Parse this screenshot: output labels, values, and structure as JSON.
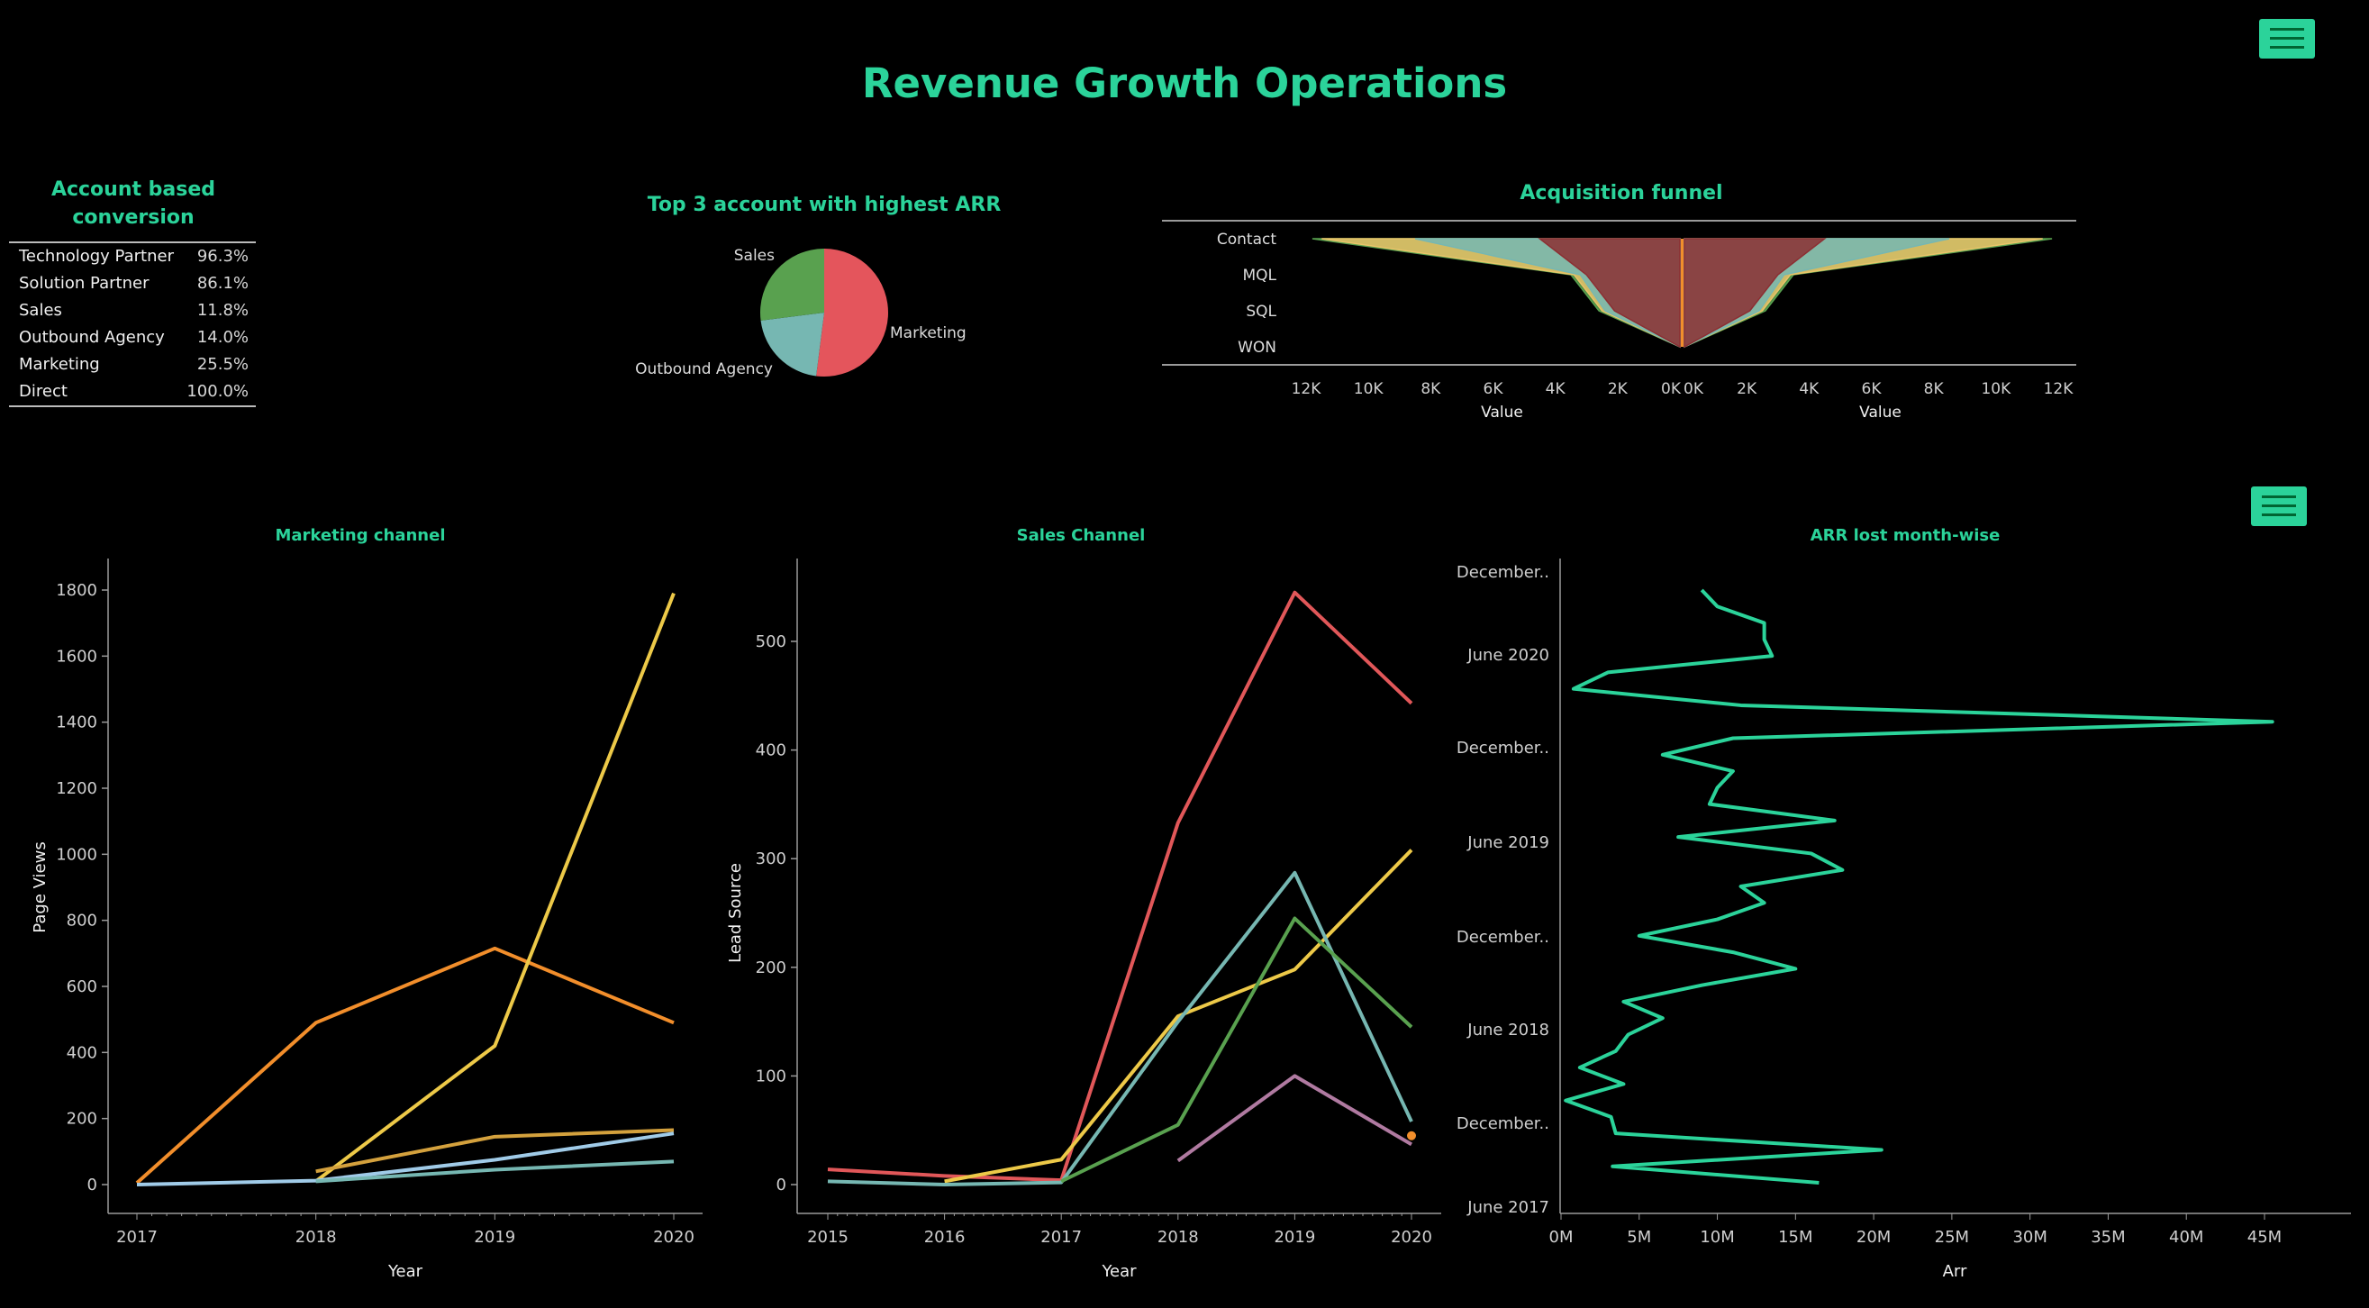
{
  "dashboard": {
    "title": "Revenue Growth Operations",
    "accent_color": "#2bd39a",
    "background_color": "#000000",
    "menu_icon": "hamburger-menu-icon"
  },
  "account_table": {
    "title_line1": "Account based",
    "title_line2": "conversion",
    "rows": [
      {
        "label": "Technology Partner",
        "value": "96.3%"
      },
      {
        "label": "Solution Partner",
        "value": "86.1%"
      },
      {
        "label": "Sales",
        "value": "11.8%"
      },
      {
        "label": "Outbound Agency",
        "value": "14.0%"
      },
      {
        "label": "Marketing",
        "value": "25.5%"
      },
      {
        "label": "Direct",
        "value": "100.0%"
      }
    ]
  },
  "chart_data": [
    {
      "id": "pie",
      "type": "pie",
      "title": "Top 3 account with highest ARR",
      "slices": [
        {
          "label": "Marketing",
          "value": 52,
          "color": "#e4555c"
        },
        {
          "label": "Outbound Agency",
          "value": 21,
          "color": "#76b7b2"
        },
        {
          "label": "Sales",
          "value": 27,
          "color": "#59a14f"
        }
      ]
    },
    {
      "id": "funnel",
      "type": "area",
      "title": "Acquisition funnel",
      "stages": [
        "Contact",
        "MQL",
        "SQL",
        "WON"
      ],
      "xlabel": "Value",
      "xlim": [
        0,
        12000
      ],
      "left_ticks": [
        "12K",
        "10K",
        "8K",
        "6K",
        "4K",
        "2K",
        "0K"
      ],
      "right_ticks": [
        "0K",
        "2K",
        "4K",
        "6K",
        "8K",
        "10K",
        "12K"
      ],
      "series": [
        {
          "color": "#59a14f",
          "values": [
            11800,
            3500,
            2600,
            0
          ]
        },
        {
          "color": "#e9c46a",
          "values": [
            11500,
            3400,
            2500,
            0
          ]
        },
        {
          "color": "#76b7b2",
          "values": [
            8500,
            3200,
            2400,
            0
          ]
        },
        {
          "color": "#8c2f33",
          "values": [
            4500,
            3000,
            2100,
            0
          ]
        }
      ]
    },
    {
      "id": "marketing",
      "type": "line",
      "title": "Marketing channel",
      "xlabel": "Year",
      "ylabel": "Page Views",
      "x": [
        2017,
        2018,
        2019,
        2020
      ],
      "ylim": [
        0,
        1800
      ],
      "yticks": [
        0,
        200,
        400,
        600,
        800,
        1000,
        1200,
        1400,
        1600,
        1800
      ],
      "series": [
        {
          "color": "#f28e2b",
          "points": [
            [
              2017,
              5
            ],
            [
              2018,
              490
            ],
            [
              2019,
              715
            ],
            [
              2020,
              490
            ]
          ]
        },
        {
          "color": "#edc948",
          "points": [
            [
              2018,
              10
            ],
            [
              2019,
              420
            ],
            [
              2020,
              1790
            ]
          ]
        },
        {
          "color": "#d4a13d",
          "points": [
            [
              2018,
              40
            ],
            [
              2019,
              145
            ],
            [
              2020,
              165
            ]
          ]
        },
        {
          "color": "#a0cbe8",
          "points": [
            [
              2017,
              0
            ],
            [
              2018,
              12
            ],
            [
              2019,
              75
            ],
            [
              2020,
              155
            ]
          ]
        },
        {
          "color": "#76b7b2",
          "points": [
            [
              2018,
              10
            ],
            [
              2019,
              45
            ],
            [
              2020,
              70
            ]
          ]
        }
      ]
    },
    {
      "id": "sales",
      "type": "line",
      "title": "Sales Channel",
      "xlabel": "Year",
      "ylabel": "Lead Source",
      "x": [
        2015,
        2016,
        2017,
        2018,
        2019,
        2020
      ],
      "ylim": [
        0,
        500
      ],
      "yticks": [
        0,
        100,
        200,
        300,
        400,
        500
      ],
      "series": [
        {
          "color": "#e15759",
          "points": [
            [
              2015,
              14
            ],
            [
              2016,
              8
            ],
            [
              2017,
              4
            ],
            [
              2018,
              333
            ],
            [
              2019,
              545
            ],
            [
              2020,
              443
            ]
          ]
        },
        {
          "color": "#edc948",
          "points": [
            [
              2016,
              3
            ],
            [
              2017,
              23
            ],
            [
              2018,
              155
            ],
            [
              2019,
              198
            ],
            [
              2020,
              308
            ]
          ]
        },
        {
          "color": "#76b7b2",
          "points": [
            [
              2015,
              3
            ],
            [
              2016,
              0
            ],
            [
              2017,
              2
            ],
            [
              2018,
              150
            ],
            [
              2019,
              287
            ],
            [
              2020,
              58
            ]
          ]
        },
        {
          "color": "#59a14f",
          "points": [
            [
              2017,
              3
            ],
            [
              2018,
              55
            ],
            [
              2019,
              245
            ],
            [
              2020,
              145
            ]
          ]
        },
        {
          "color": "#b07aa1",
          "points": [
            [
              2018,
              22
            ],
            [
              2019,
              100
            ],
            [
              2020,
              37
            ]
          ]
        }
      ],
      "markers": [
        {
          "color": "#f28e2b",
          "x": 2020,
          "y": 45
        }
      ]
    },
    {
      "id": "arr",
      "type": "line",
      "title": "ARR lost month-wise",
      "xlabel": "Arr",
      "ylabel": "",
      "xlim": [
        0,
        45
      ],
      "xticks": [
        "0M",
        "5M",
        "10M",
        "15M",
        "20M",
        "25M",
        "30M",
        "35M",
        "40M",
        "45M"
      ],
      "ytick_labels": [
        "December..",
        "June 2020",
        "December..",
        "June 2019",
        "December..",
        "June 2018",
        "December..",
        "June 2017"
      ],
      "unit": "M",
      "values": [
        16.5,
        3.3,
        20.5,
        3.5,
        3.2,
        0.3,
        4.0,
        1.2,
        3.5,
        4.3,
        6.5,
        4.0,
        9.0,
        15.0,
        11.0,
        5.0,
        10.0,
        13.0,
        11.5,
        18.0,
        16.0,
        7.5,
        17.5,
        9.5,
        10.0,
        11.0,
        6.5,
        11.0,
        45.5,
        11.5,
        0.8,
        3.0,
        13.5,
        13.0,
        13.0,
        10.0,
        9.0
      ]
    }
  ]
}
